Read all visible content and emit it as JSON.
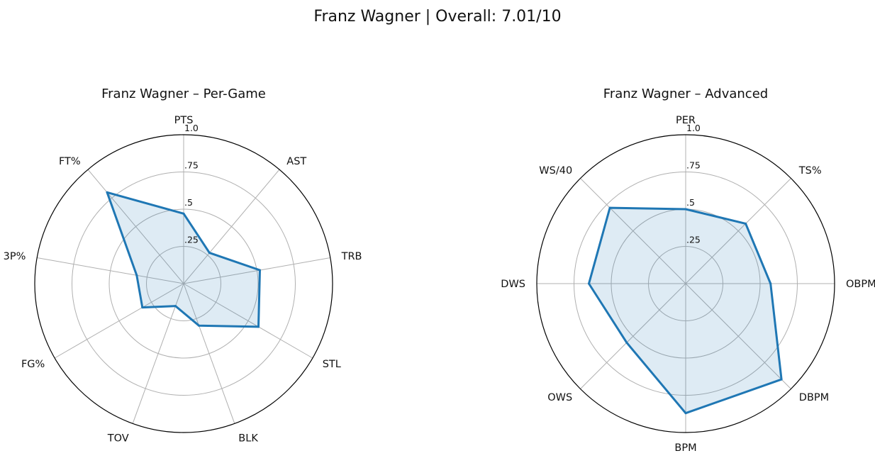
{
  "suptitle": "Franz Wagner | Overall: 7.01/10",
  "colors": {
    "line": "#1f77b4",
    "fill": "#1f77b4",
    "grid": "#b0b0b0",
    "frame": "#000000"
  },
  "chart_data": [
    {
      "type": "radar",
      "title": "Franz Wagner – Per-Game",
      "categories": [
        "PTS",
        "AST",
        "TRB",
        "STL",
        "BLK",
        "TOV",
        "FG%",
        "3P%",
        "FT%"
      ],
      "values": [
        0.47,
        0.27,
        0.52,
        0.58,
        0.3,
        0.16,
        0.32,
        0.32,
        0.8
      ],
      "rlim": [
        0,
        1
      ],
      "rticks": [
        0.25,
        0.5,
        0.75,
        1.0
      ],
      "rtick_labels": [
        ".25",
        ".5",
        ".75",
        "1.0"
      ],
      "grid": true,
      "start": "top",
      "direction": "clockwise"
    },
    {
      "type": "radar",
      "title": "Franz Wagner – Advanced",
      "categories": [
        "PER",
        "TS%",
        "OBPM",
        "DBPM",
        "BPM",
        "OWS",
        "DWS",
        "WS/40"
      ],
      "values": [
        0.5,
        0.57,
        0.57,
        0.91,
        0.87,
        0.56,
        0.65,
        0.72
      ],
      "rlim": [
        0,
        1
      ],
      "rticks": [
        0.25,
        0.5,
        0.75,
        1.0
      ],
      "rtick_labels": [
        ".25",
        ".5",
        ".75",
        "1.0"
      ],
      "grid": true,
      "start": "top",
      "direction": "clockwise"
    }
  ]
}
